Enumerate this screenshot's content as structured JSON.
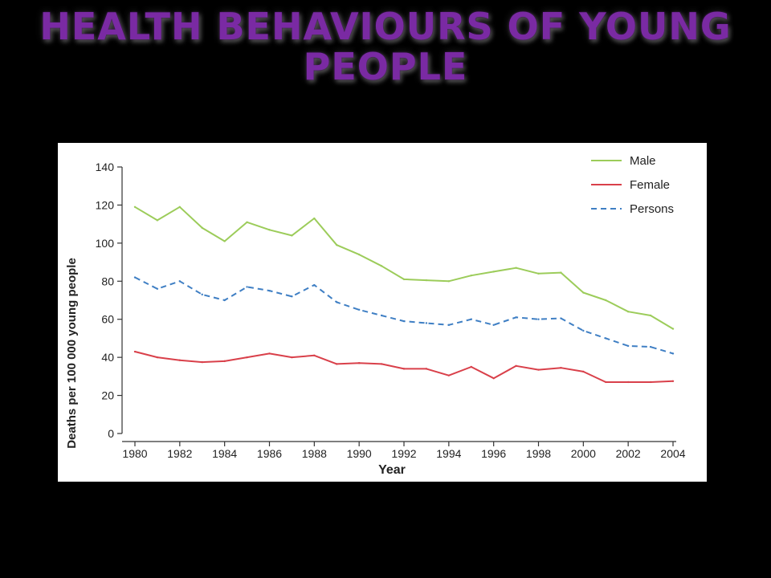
{
  "slide": {
    "title_line1": "Health behaviours of young",
    "title_line2": "people"
  },
  "chart_data": {
    "type": "line",
    "title": "",
    "xlabel": "Year",
    "ylabel": "Deaths per 100 000 young people",
    "xlim": [
      1980,
      2004
    ],
    "ylim": [
      0,
      140
    ],
    "x_ticks": [
      1980,
      1982,
      1984,
      1986,
      1988,
      1990,
      1992,
      1994,
      1996,
      1998,
      2000,
      2002,
      2004
    ],
    "y_ticks": [
      0,
      20,
      40,
      60,
      80,
      100,
      120,
      140
    ],
    "grid": false,
    "legend_position": "top-right",
    "x": [
      1980,
      1981,
      1982,
      1983,
      1984,
      1985,
      1986,
      1987,
      1988,
      1989,
      1990,
      1991,
      1992,
      1993,
      1994,
      1995,
      1996,
      1997,
      1998,
      1999,
      2000,
      2001,
      2002,
      2003,
      2004
    ],
    "series": [
      {
        "name": "Male",
        "color": "#9ccc5a",
        "dash": "solid",
        "values": [
          119,
          112,
          119,
          108,
          101,
          111,
          107,
          104,
          113,
          99,
          94,
          88,
          81,
          80.5,
          80,
          83,
          85,
          87,
          84,
          84.5,
          74,
          70,
          64,
          62,
          55
        ]
      },
      {
        "name": "Female",
        "color": "#d9404a",
        "dash": "solid",
        "values": [
          43,
          40,
          38.5,
          37.5,
          38,
          40,
          42,
          40,
          41,
          36.5,
          37,
          36.5,
          34,
          34,
          30.5,
          35,
          29,
          35.5,
          33.5,
          34.5,
          32.5,
          27,
          27,
          27,
          27.5
        ]
      },
      {
        "name": "Persons",
        "color": "#3f7fc4",
        "dash": "dashed",
        "values": [
          82,
          76,
          80,
          73,
          70,
          77,
          75,
          72,
          78,
          69,
          65,
          62,
          59,
          58,
          57,
          60,
          57,
          61,
          60,
          60.5,
          54,
          50,
          46,
          45.5,
          42
        ]
      }
    ]
  }
}
